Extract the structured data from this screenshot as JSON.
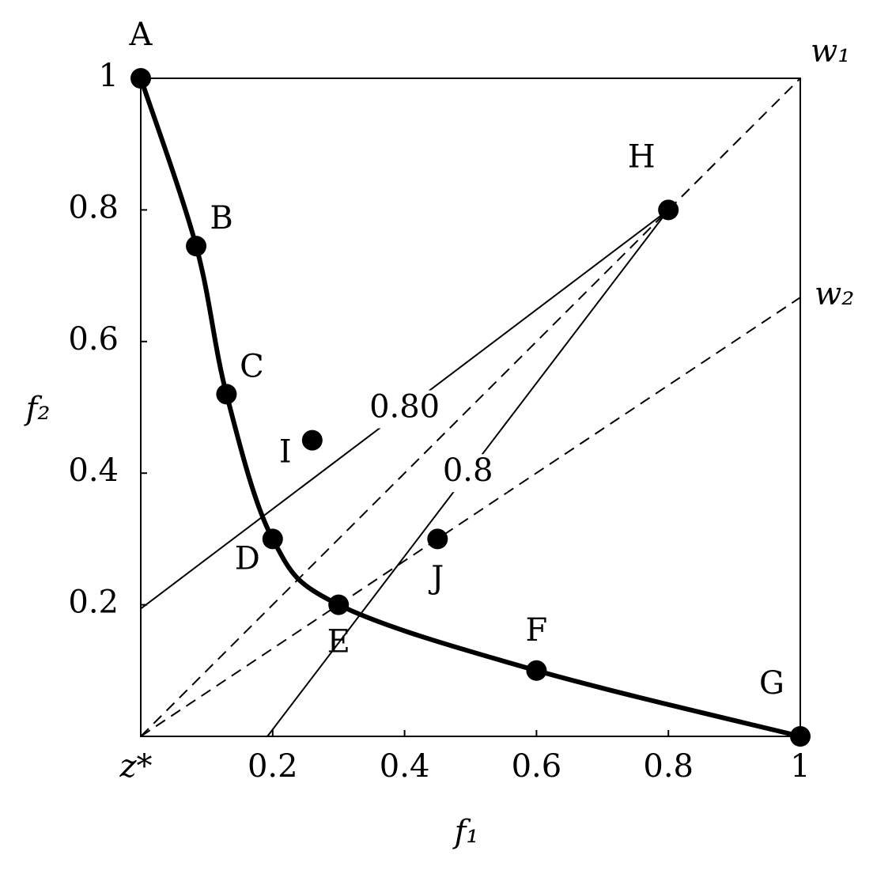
{
  "chart_data": {
    "type": "line",
    "x_label": "f₁",
    "y_label": "f₂",
    "origin_label": "z*",
    "xlim": [
      0,
      1
    ],
    "ylim": [
      0,
      1
    ],
    "xticks": [
      0.2,
      0.4,
      0.6,
      0.8,
      1
    ],
    "yticks": [
      0.2,
      0.4,
      0.6,
      0.8,
      1
    ],
    "color": "#000000",
    "front": {
      "labels": [
        "A",
        "B",
        "C",
        "D",
        "E",
        "F",
        "G"
      ],
      "x": [
        0,
        0.084,
        0.13,
        0.2,
        0.3,
        0.6,
        1
      ],
      "y": [
        1,
        0.745,
        0.52,
        0.3,
        0.2,
        0.1,
        0
      ]
    },
    "points": {
      "labels": [
        "H",
        "I",
        "J"
      ],
      "x": [
        0.8,
        0.26,
        0.45
      ],
      "y": [
        0.8,
        0.45,
        0.3
      ]
    },
    "rays": [
      {
        "label": "w₁",
        "x": [
          0,
          1
        ],
        "y": [
          0,
          1
        ]
      },
      {
        "label": "w₂",
        "x": [
          0,
          1
        ],
        "y": [
          0,
          0.667
        ]
      }
    ],
    "contours": [
      {
        "label": "0.80",
        "x": [
          0.8,
          0
        ],
        "y": [
          0.8,
          0.194
        ]
      },
      {
        "label": "0.8",
        "x": [
          0.8,
          0.192
        ],
        "y": [
          0.8,
          0
        ]
      }
    ]
  }
}
